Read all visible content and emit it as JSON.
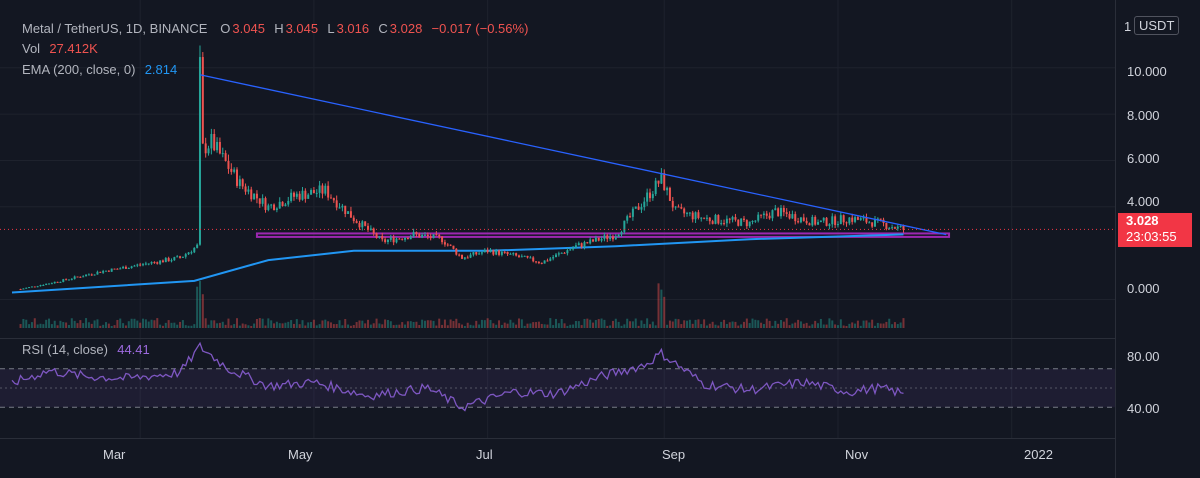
{
  "legend": {
    "symbol": "Metal / TetherUS, 1D, BINANCE",
    "open_label": "O",
    "open": "3.045",
    "high_label": "H",
    "high": "3.045",
    "low_label": "L",
    "low": "3.016",
    "close_label": "C",
    "close": "3.028",
    "change": "−0.017 (−0.56%)",
    "vol_label": "Vol",
    "vol": "27.412K",
    "ema_label": "EMA (200, close, 0)",
    "ema": "2.814",
    "rsi_label": "RSI (14, close)",
    "rsi": "44.41"
  },
  "price_axis": {
    "unit_prefix": "1",
    "unit": "USDT",
    "ticks": [
      "10.000",
      "8.000",
      "6.000",
      "4.000",
      "0.000"
    ],
    "last_price": "3.028",
    "countdown": "23:03:55"
  },
  "rsi_axis": {
    "ticks": [
      "80.00",
      "40.00"
    ]
  },
  "time_axis": {
    "ticks": [
      "Mar",
      "May",
      "Jul",
      "Sep",
      "Nov",
      "2022"
    ]
  },
  "colors": {
    "background": "#131722",
    "up": "#26a69a",
    "down": "#ef5350",
    "ema": "#2196f3",
    "trendline": "#2962ff",
    "support_box": "#9c27b0",
    "rsi": "#7e57c2",
    "price_tag": "#f23645"
  },
  "chart_data": {
    "type": "candlestick",
    "x_range": [
      "2021-01-15",
      "2022-02-01"
    ],
    "y_range": [
      -0.8,
      11.2
    ],
    "price_series": [
      {
        "date": "2021-01-18",
        "close": 0.45
      },
      {
        "date": "2021-02-01",
        "close": 0.8
      },
      {
        "date": "2021-02-15",
        "close": 1.2
      },
      {
        "date": "2021-03-01",
        "close": 1.5
      },
      {
        "date": "2021-03-15",
        "close": 1.8
      },
      {
        "date": "2021-03-21",
        "close": 2.3
      },
      {
        "date": "2021-03-22",
        "close": 10.0
      },
      {
        "date": "2021-03-23",
        "close": 6.5
      },
      {
        "date": "2021-03-26",
        "close": 6.8
      },
      {
        "date": "2021-04-05",
        "close": 5.0
      },
      {
        "date": "2021-04-15",
        "close": 4.0
      },
      {
        "date": "2021-04-25",
        "close": 4.5
      },
      {
        "date": "2021-05-05",
        "close": 4.7
      },
      {
        "date": "2021-05-15",
        "close": 3.5
      },
      {
        "date": "2021-05-25",
        "close": 2.5
      },
      {
        "date": "2021-06-05",
        "close": 2.8
      },
      {
        "date": "2021-06-15",
        "close": 2.6
      },
      {
        "date": "2021-06-22",
        "close": 1.8
      },
      {
        "date": "2021-07-01",
        "close": 2.1
      },
      {
        "date": "2021-07-10",
        "close": 1.9
      },
      {
        "date": "2021-07-20",
        "close": 1.6
      },
      {
        "date": "2021-08-01",
        "close": 2.3
      },
      {
        "date": "2021-08-15",
        "close": 2.8
      },
      {
        "date": "2021-08-31",
        "close": 5.2
      },
      {
        "date": "2021-09-05",
        "close": 3.8
      },
      {
        "date": "2021-09-15",
        "close": 3.5
      },
      {
        "date": "2021-10-01",
        "close": 3.3
      },
      {
        "date": "2021-10-10",
        "close": 3.8
      },
      {
        "date": "2021-10-25",
        "close": 3.3
      },
      {
        "date": "2021-11-05",
        "close": 3.5
      },
      {
        "date": "2021-11-15",
        "close": 3.3
      },
      {
        "date": "2021-11-24",
        "close": 3.03
      }
    ],
    "ema_series": [
      {
        "date": "2021-01-15",
        "value": 0.3
      },
      {
        "date": "2021-03-20",
        "value": 0.8
      },
      {
        "date": "2021-04-15",
        "value": 1.7
      },
      {
        "date": "2021-05-15",
        "value": 2.1
      },
      {
        "date": "2021-07-01",
        "value": 2.1
      },
      {
        "date": "2021-08-15",
        "value": 2.3
      },
      {
        "date": "2021-10-01",
        "value": 2.6
      },
      {
        "date": "2021-11-24",
        "value": 2.81
      }
    ],
    "trendline": [
      {
        "date": "2021-03-22",
        "value": 9.7
      },
      {
        "date": "2021-12-09",
        "value": 2.8
      }
    ],
    "support_zone": {
      "from": "2021-04-11",
      "to": "2021-12-10",
      "low": 2.7,
      "high": 2.85
    },
    "rsi_series": [
      {
        "date": "2021-01-15",
        "value": 55
      },
      {
        "date": "2021-01-28",
        "value": 68
      },
      {
        "date": "2021-02-10",
        "value": 62
      },
      {
        "date": "2021-02-25",
        "value": 60
      },
      {
        "date": "2021-03-15",
        "value": 66
      },
      {
        "date": "2021-03-22",
        "value": 93
      },
      {
        "date": "2021-04-01",
        "value": 70
      },
      {
        "date": "2021-04-15",
        "value": 52
      },
      {
        "date": "2021-05-01",
        "value": 56
      },
      {
        "date": "2021-05-20",
        "value": 42
      },
      {
        "date": "2021-06-10",
        "value": 50
      },
      {
        "date": "2021-06-22",
        "value": 30
      },
      {
        "date": "2021-07-10",
        "value": 46
      },
      {
        "date": "2021-07-25",
        "value": 44
      },
      {
        "date": "2021-08-10",
        "value": 62
      },
      {
        "date": "2021-08-25",
        "value": 74
      },
      {
        "date": "2021-08-31",
        "value": 86
      },
      {
        "date": "2021-09-15",
        "value": 54
      },
      {
        "date": "2021-10-01",
        "value": 48
      },
      {
        "date": "2021-10-20",
        "value": 56
      },
      {
        "date": "2021-11-05",
        "value": 46
      },
      {
        "date": "2021-11-15",
        "value": 50
      },
      {
        "date": "2021-11-24",
        "value": 44.41
      }
    ],
    "rsi_range": [
      0,
      100
    ],
    "rsi_bands": [
      70,
      30
    ]
  }
}
